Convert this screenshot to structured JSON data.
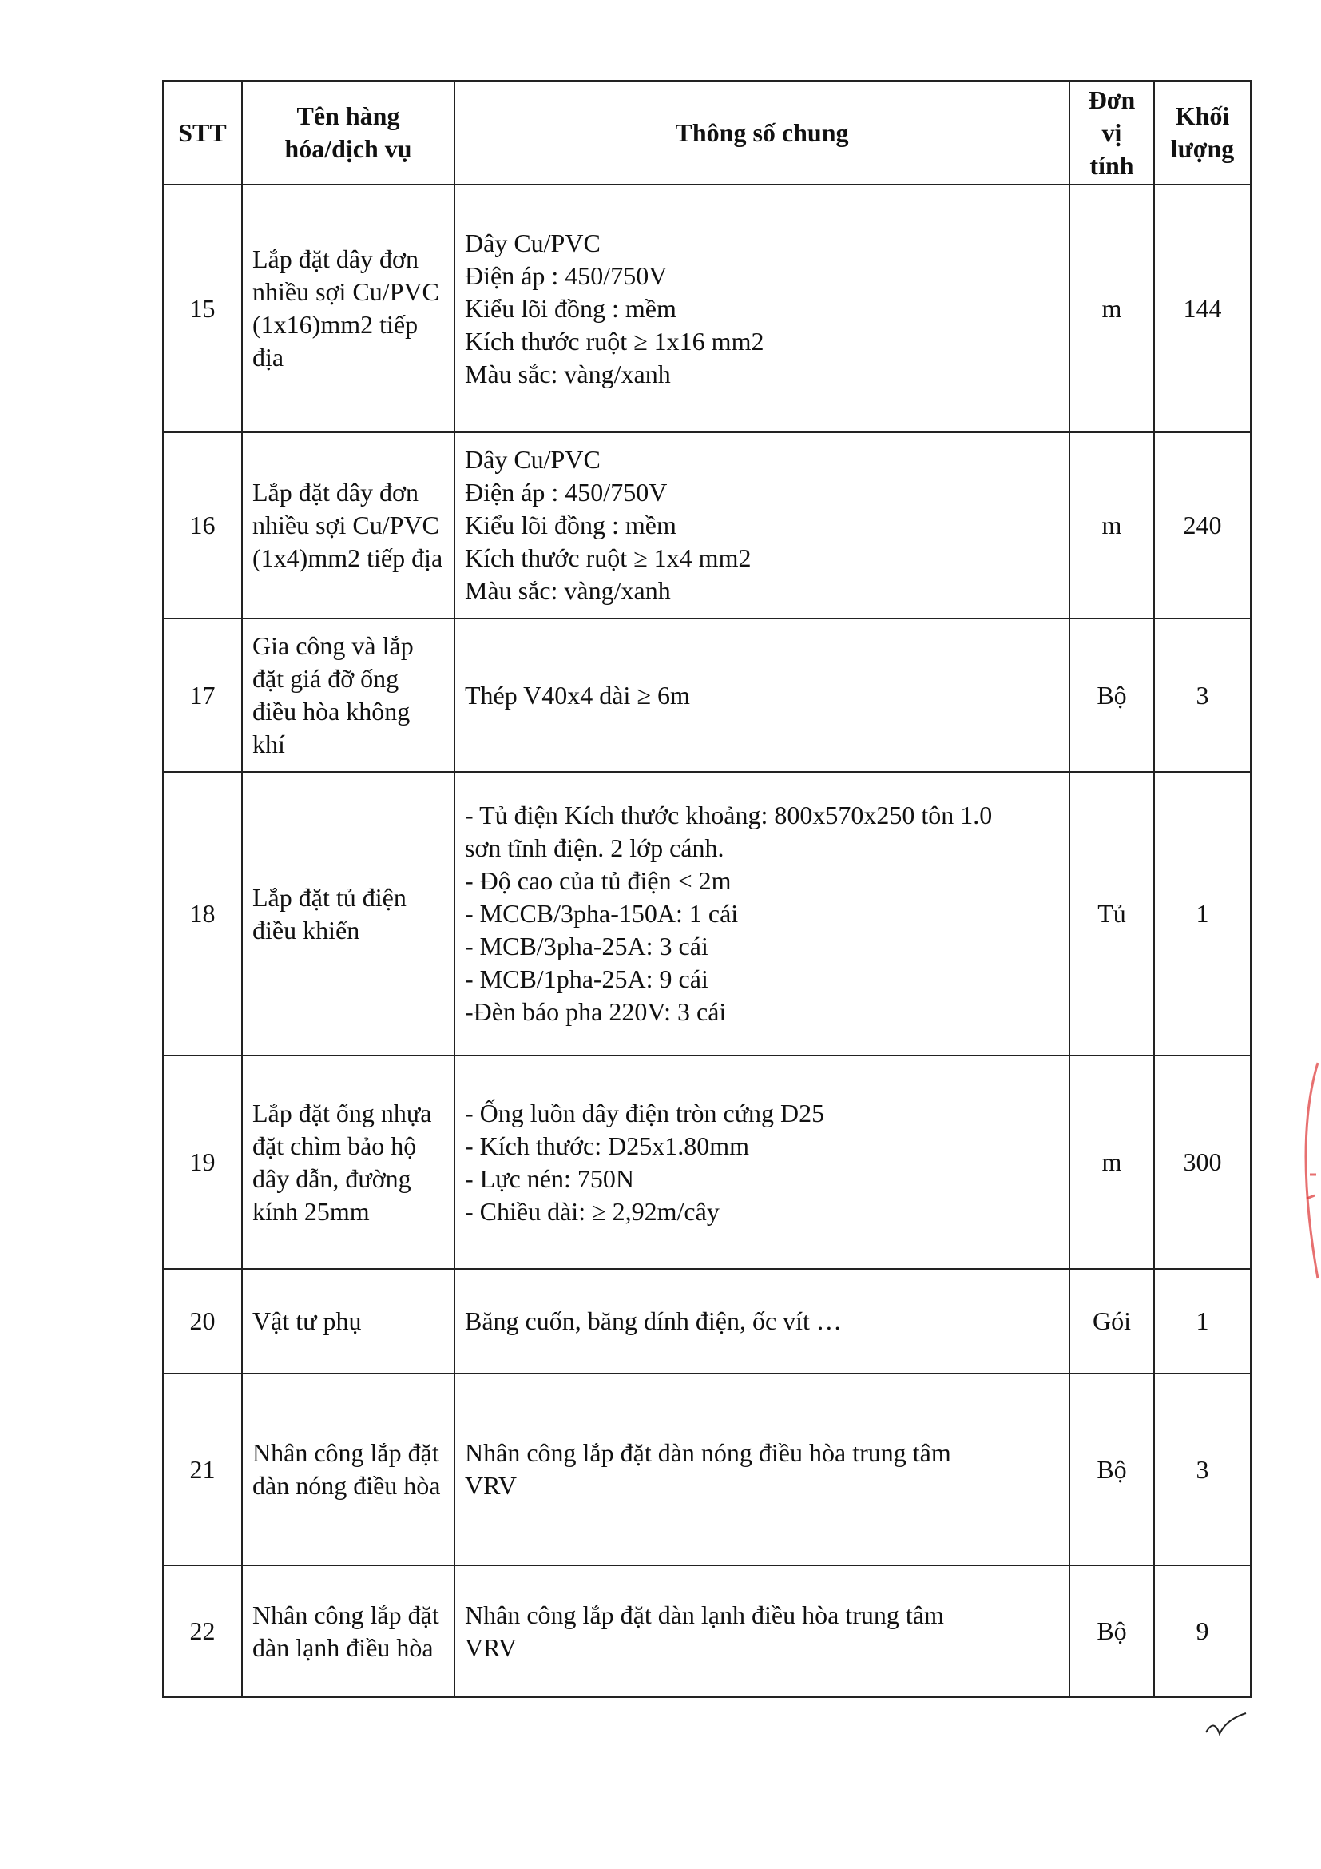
{
  "header": {
    "stt": "STT",
    "name": "Tên hàng hóa/dịch vụ",
    "spec": "Thông số chung",
    "unit": "Đơn vị tính",
    "qty": "Khối lượng"
  },
  "rows": [
    {
      "stt": "15",
      "name": "Lắp đặt dây đơn nhiều sợi Cu/PVC (1x16)mm2 tiếp địa",
      "spec": [
        "Dây Cu/PVC",
        "Điện áp : 450/750V",
        "Kiểu lõi đồng : mềm",
        "Kích thước ruột ≥ 1x16 mm2",
        "Màu sắc: vàng/xanh"
      ],
      "unit": "m",
      "qty": "144"
    },
    {
      "stt": "16",
      "name": "Lắp đặt dây đơn nhiều sợi Cu/PVC (1x4)mm2 tiếp địa",
      "spec": [
        "Dây Cu/PVC",
        "Điện áp : 450/750V",
        "Kiểu lõi đồng : mềm",
        "Kích thước ruột ≥ 1x4 mm2",
        "Màu sắc: vàng/xanh"
      ],
      "unit": "m",
      "qty": "240"
    },
    {
      "stt": "17",
      "name": "Gia công và lắp đặt giá đỡ ống điều hòa không khí",
      "spec": [
        "Thép V40x4 dài ≥ 6m"
      ],
      "unit": "Bộ",
      "qty": "3"
    },
    {
      "stt": "18",
      "name": "Lắp đặt tủ điện điều khiển",
      "spec": [
        "- Tủ điện Kích thước khoảng: 800x570x250 tôn 1.0",
        "sơn tĩnh điện. 2 lớp cánh.",
        "- Độ cao của tủ điện < 2m",
        "- MCCB/3pha-150A: 1 cái",
        "- MCB/3pha-25A: 3 cái",
        "- MCB/1pha-25A: 9 cái",
        "-Đèn báo pha 220V: 3 cái"
      ],
      "unit": "Tủ",
      "qty": "1"
    },
    {
      "stt": "19",
      "name": "Lắp đặt ống nhựa đặt chìm bảo hộ dây dẫn, đường kính 25mm",
      "spec": [
        "- Ống luồn dây điện tròn cứng D25",
        "- Kích thước: D25x1.80mm",
        "- Lực nén: 750N",
        "- Chiều dài: ≥ 2,92m/cây"
      ],
      "unit": "m",
      "qty": "300"
    },
    {
      "stt": "20",
      "name": "Vật tư phụ",
      "spec": [
        "Băng cuốn, băng dính điện, ốc vít …"
      ],
      "unit": "Gói",
      "qty": "1"
    },
    {
      "stt": "21",
      "name": "Nhân công lắp đặt dàn nóng điều hòa",
      "spec": [
        "Nhân công lắp đặt dàn nóng điều hòa trung tâm",
        "VRV"
      ],
      "unit": "Bộ",
      "qty": "3"
    },
    {
      "stt": "22",
      "name": "Nhân công lắp đặt dàn lạnh điều hòa",
      "spec": [
        "Nhân công lắp đặt dàn lạnh điều hòa trung tâm",
        "VRV"
      ],
      "unit": "Bộ",
      "qty": "9"
    }
  ]
}
